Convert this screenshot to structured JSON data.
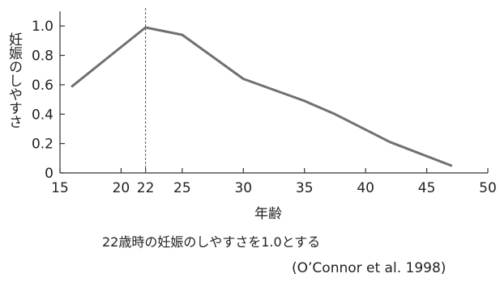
{
  "chart_data": {
    "type": "line",
    "title": "",
    "xlabel": "年齢",
    "ylabel": "妊娠のしやすさ",
    "x_ticks": [
      15,
      20,
      22,
      25,
      30,
      35,
      40,
      45,
      50
    ],
    "y_ticks": [
      0,
      0.2,
      0.4,
      0.6,
      0.8,
      1.0
    ],
    "y_tick_labels": [
      "0",
      "0.2",
      "0.4",
      "0.6",
      "0.8",
      "1.0"
    ],
    "xlim": [
      15,
      50
    ],
    "ylim": [
      0,
      1.1
    ],
    "grid": false,
    "reference_line_x": 22,
    "series": [
      {
        "x": [
          16,
          22,
          25,
          30,
          35,
          37.5,
          42,
          47
        ],
        "y": [
          0.59,
          0.99,
          0.94,
          0.64,
          0.49,
          0.4,
          0.21,
          0.05
        ],
        "color": "#707070"
      }
    ],
    "annotations": {
      "caption": "22歳時の妊娠のしやすさを1.0とする",
      "source": "(O’Connor et al. 1998)"
    }
  }
}
